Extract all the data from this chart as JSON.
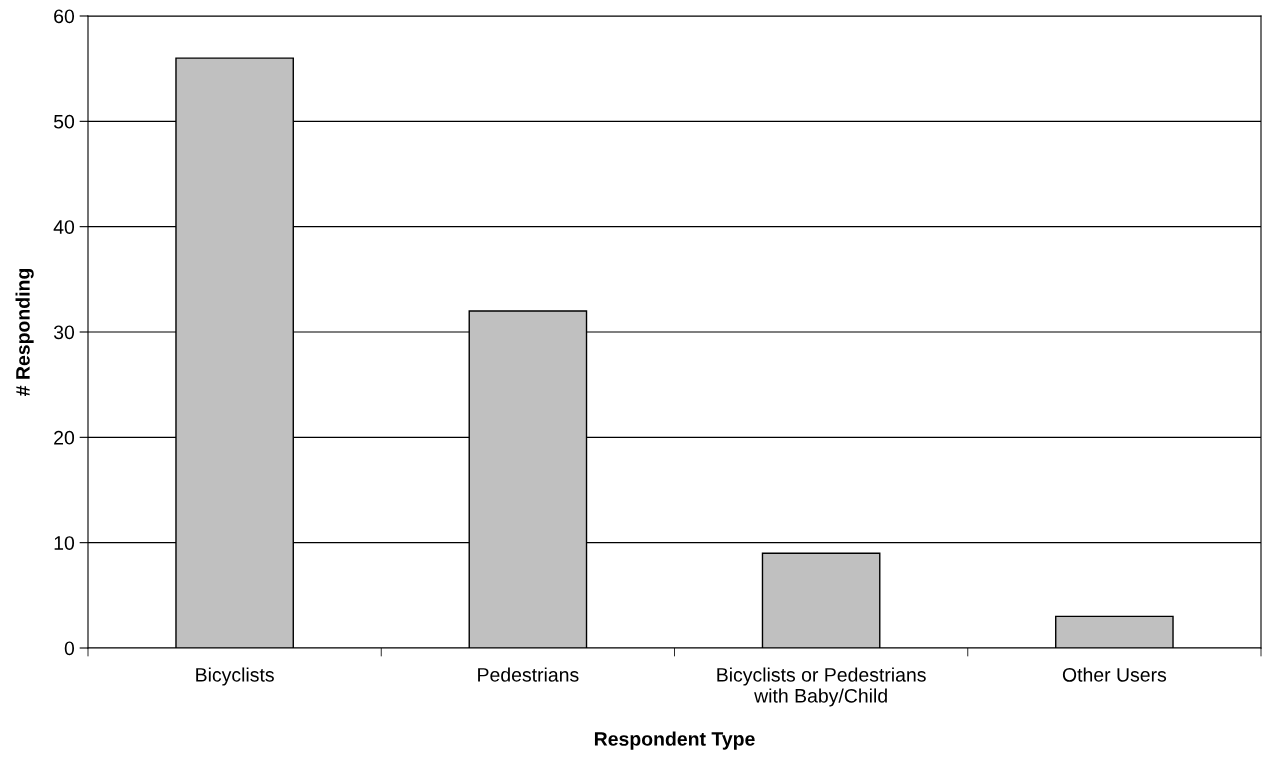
{
  "chart_data": {
    "type": "bar",
    "xlabel": "Respondent Type",
    "ylabel": "# Responding",
    "categories": [
      "Bicyclists",
      "Pedestrians",
      "Bicyclists or Pedestrians\nwith Baby/Child",
      "Other Users"
    ],
    "values": [
      56,
      32,
      9,
      3
    ],
    "color": "#c0c0c0",
    "ylim": [
      0,
      60
    ],
    "yticks": [
      0,
      10,
      20,
      30,
      40,
      50,
      60
    ],
    "grid": "y",
    "legend": false
  }
}
